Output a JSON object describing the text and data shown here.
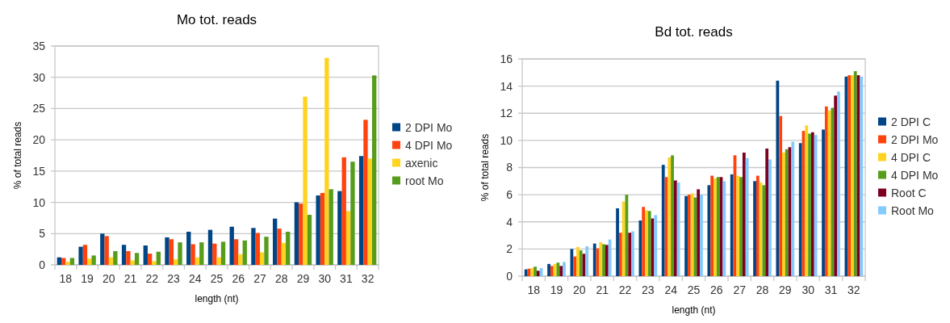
{
  "chart_data": [
    {
      "type": "bar",
      "title": "Mo tot. reads",
      "xlabel": "length (nt)",
      "ylabel": "% of total reads",
      "categories": [
        "18",
        "19",
        "20",
        "21",
        "22",
        "23",
        "24",
        "25",
        "26",
        "27",
        "28",
        "29",
        "30",
        "31",
        "32"
      ],
      "ylim": [
        0,
        35
      ],
      "yticks": [
        0,
        5,
        10,
        15,
        20,
        25,
        30,
        35
      ],
      "grid": "y",
      "legend": "right",
      "series": [
        {
          "name": "2 DPI Mo",
          "color": "#004586",
          "values": [
            1.2,
            2.9,
            5.0,
            3.2,
            3.1,
            4.4,
            5.3,
            5.6,
            6.1,
            5.9,
            7.4,
            10.0,
            11.1,
            11.8,
            17.4
          ]
        },
        {
          "name": "4 DPI Mo",
          "color": "#ff420e",
          "values": [
            1.1,
            3.2,
            4.6,
            2.2,
            1.8,
            4.1,
            3.3,
            3.4,
            4.1,
            5.1,
            5.8,
            9.8,
            11.5,
            17.2,
            23.2
          ]
        },
        {
          "name": "axenic",
          "color": "#ffd320",
          "values": [
            0.5,
            1.0,
            1.2,
            0.7,
            0.6,
            0.9,
            1.2,
            1.2,
            1.7,
            2.0,
            3.5,
            26.9,
            33.1,
            8.6,
            17.0
          ]
        },
        {
          "name": "root Mo",
          "color": "#579d1c",
          "values": [
            1.1,
            1.5,
            2.2,
            1.9,
            2.1,
            3.6,
            3.6,
            3.7,
            3.9,
            4.5,
            5.3,
            8.0,
            12.1,
            16.5,
            30.3
          ]
        }
      ]
    },
    {
      "type": "bar",
      "title": "Bd tot. reads",
      "xlabel": "length (nt)",
      "ylabel": "% of total reads",
      "categories": [
        "18",
        "19",
        "20",
        "21",
        "22",
        "23",
        "24",
        "25",
        "26",
        "27",
        "28",
        "29",
        "30",
        "31",
        "32"
      ],
      "ylim": [
        0,
        16
      ],
      "yticks": [
        0,
        2,
        4,
        6,
        8,
        10,
        12,
        14,
        16
      ],
      "grid": "y",
      "legend": "right",
      "series": [
        {
          "name": "2 DPI C",
          "color": "#004586",
          "values": [
            0.5,
            0.9,
            2.0,
            2.4,
            5.0,
            4.1,
            8.2,
            5.9,
            6.7,
            7.5,
            7.0,
            14.4,
            9.8,
            10.8,
            14.7
          ]
        },
        {
          "name": "2 DPI Mo",
          "color": "#ff420e",
          "values": [
            0.55,
            0.75,
            1.45,
            2.05,
            3.2,
            5.1,
            7.3,
            6.0,
            7.4,
            8.9,
            7.4,
            11.8,
            10.7,
            12.5,
            14.8
          ]
        },
        {
          "name": "4 DPI C",
          "color": "#ffd320",
          "values": [
            0.6,
            0.9,
            2.15,
            2.5,
            5.5,
            4.85,
            8.75,
            6.1,
            7.2,
            7.4,
            6.9,
            9.1,
            11.1,
            12.2,
            14.8
          ]
        },
        {
          "name": "4 DPI Mo",
          "color": "#579d1c",
          "values": [
            0.7,
            1.0,
            1.9,
            2.35,
            6.0,
            4.8,
            8.9,
            5.8,
            7.3,
            7.3,
            6.7,
            9.35,
            10.5,
            12.4,
            15.1
          ]
        },
        {
          "name": "Root C",
          "color": "#7e0021",
          "values": [
            0.4,
            0.75,
            1.65,
            2.3,
            3.2,
            4.25,
            7.05,
            6.4,
            7.3,
            9.1,
            9.4,
            9.5,
            10.6,
            13.3,
            14.8
          ]
        },
        {
          "name": "Root Mo",
          "color": "#83caff",
          "values": [
            0.6,
            1.05,
            2.2,
            2.7,
            3.3,
            4.5,
            6.9,
            6.0,
            7.0,
            8.7,
            8.6,
            9.9,
            10.4,
            13.6,
            14.7
          ]
        }
      ]
    }
  ]
}
